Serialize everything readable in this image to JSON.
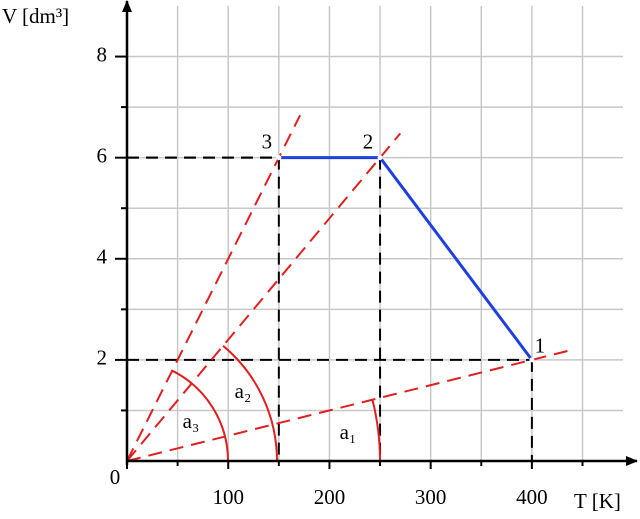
{
  "chart_data": {
    "type": "line",
    "y_label": "V [dm³]",
    "x_label": "T [K]",
    "x": [
      400,
      250,
      150
    ],
    "values": [
      2,
      6,
      6
    ],
    "color": "#1f3fe0",
    "point_labels": [
      "1",
      "2",
      "3"
    ],
    "guide_color": "#e02020",
    "angle_labels": [
      "a₁",
      "a₂",
      "a₃"
    ],
    "xlim": [
      0,
      490
    ],
    "ylim": [
      0,
      9
    ],
    "xticks": [
      0,
      100,
      200,
      300,
      400
    ],
    "yticks": [
      2,
      4,
      6,
      8
    ],
    "xticks_minor": [
      50,
      150,
      250,
      350,
      450
    ],
    "yticks_minor": [
      1,
      3,
      5,
      7
    ],
    "grid": true
  }
}
